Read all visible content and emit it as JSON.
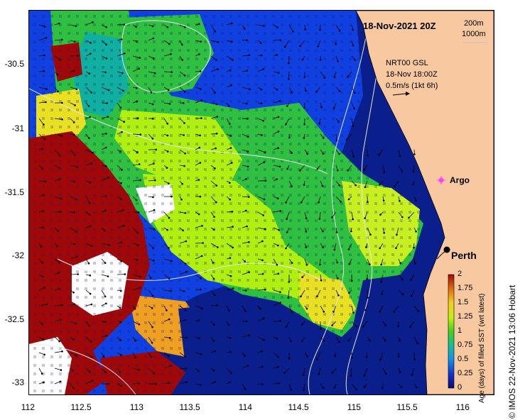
{
  "header": {
    "date": "18-Nov-2021 20Z",
    "depth_200": "200m",
    "depth_1000": "1000m"
  },
  "current_info": {
    "line1": "NRT00 GSL",
    "line2": "18-Nov 18:00Z",
    "line3": "0.5m/s (1kt 6h)"
  },
  "places": {
    "argo": "Argo",
    "perth": "Perth"
  },
  "axes": {
    "y_ticks": [
      "-30.5",
      "-31",
      "-31.5",
      "-32",
      "-32.5",
      "-33"
    ],
    "x_ticks": [
      "112",
      "112.5",
      "113",
      "113.5",
      "114",
      "114.5",
      "115",
      "115.5",
      "116"
    ]
  },
  "colorbar": {
    "label": "Age (days) of filled SST (wrt latest)",
    "ticks": [
      "2",
      "1.75",
      "1.5",
      "1.25",
      "1",
      "0.75",
      "0.5",
      "0.25",
      "0"
    ],
    "colors": [
      "#0a0a7a",
      "#1030d0",
      "#1070f0",
      "#10b0d0",
      "#20c070",
      "#60d020",
      "#b0f010",
      "#e0e020",
      "#f0b020",
      "#e06010",
      "#b01010"
    ]
  },
  "credit": "© IMOS 22-Nov-2021 13:06 Hobart",
  "colors": {
    "land": "#f8c8a0",
    "dark_blue": "#0a1e8c",
    "blue": "#1040e0",
    "green": "#30c040",
    "lime": "#b0f010",
    "yellow": "#e8e020",
    "orange": "#f0a020",
    "dark_red": "#a00808"
  }
}
